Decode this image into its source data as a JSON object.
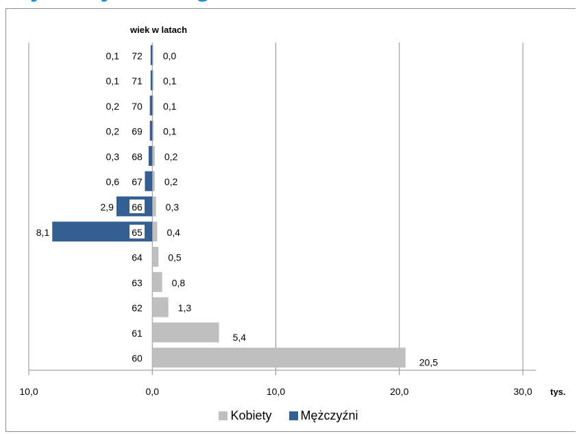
{
  "page": {
    "partial_title": "...nych wyniku ...gu ..."
  },
  "chart_data": {
    "type": "bar",
    "orientation": "horizontal",
    "diverging": true,
    "ylabel": "wiek w latach",
    "xunit": "tys.",
    "categories": [
      "72",
      "71",
      "70",
      "69",
      "68",
      "67",
      "66",
      "65",
      "64",
      "63",
      "62",
      "61",
      "60"
    ],
    "xlim": [
      -10,
      30
    ],
    "xticks": [
      {
        "value": -10,
        "label": "10,0"
      },
      {
        "value": 0,
        "label": "0,0"
      },
      {
        "value": 10,
        "label": "10,0"
      },
      {
        "value": 20,
        "label": "20,0"
      },
      {
        "value": 30,
        "label": "30,0"
      }
    ],
    "grid": true,
    "legend_position": "bottom",
    "series": [
      {
        "name": "Kobiety",
        "color": "#bfbfbf",
        "side": "right",
        "values": [
          0.0,
          0.1,
          0.1,
          0.1,
          0.2,
          0.2,
          0.3,
          0.4,
          0.5,
          0.8,
          1.3,
          5.4,
          20.5
        ],
        "labels": [
          "0,0",
          "0,1",
          "0,1",
          "0,1",
          "0,2",
          "0,2",
          "0,3",
          "0,4",
          "0,5",
          "0,8",
          "1,3",
          "5,4",
          "20,5"
        ]
      },
      {
        "name": "Mężczyźni",
        "color": "#335f93",
        "side": "left",
        "values": [
          0.1,
          0.1,
          0.2,
          0.2,
          0.3,
          0.6,
          2.9,
          8.1,
          null,
          null,
          null,
          null,
          null
        ],
        "labels": [
          "0,1",
          "0,1",
          "0,2",
          "0,2",
          "0,3",
          "0,6",
          "2,9",
          "8,1",
          null,
          null,
          null,
          null,
          null
        ]
      }
    ]
  }
}
